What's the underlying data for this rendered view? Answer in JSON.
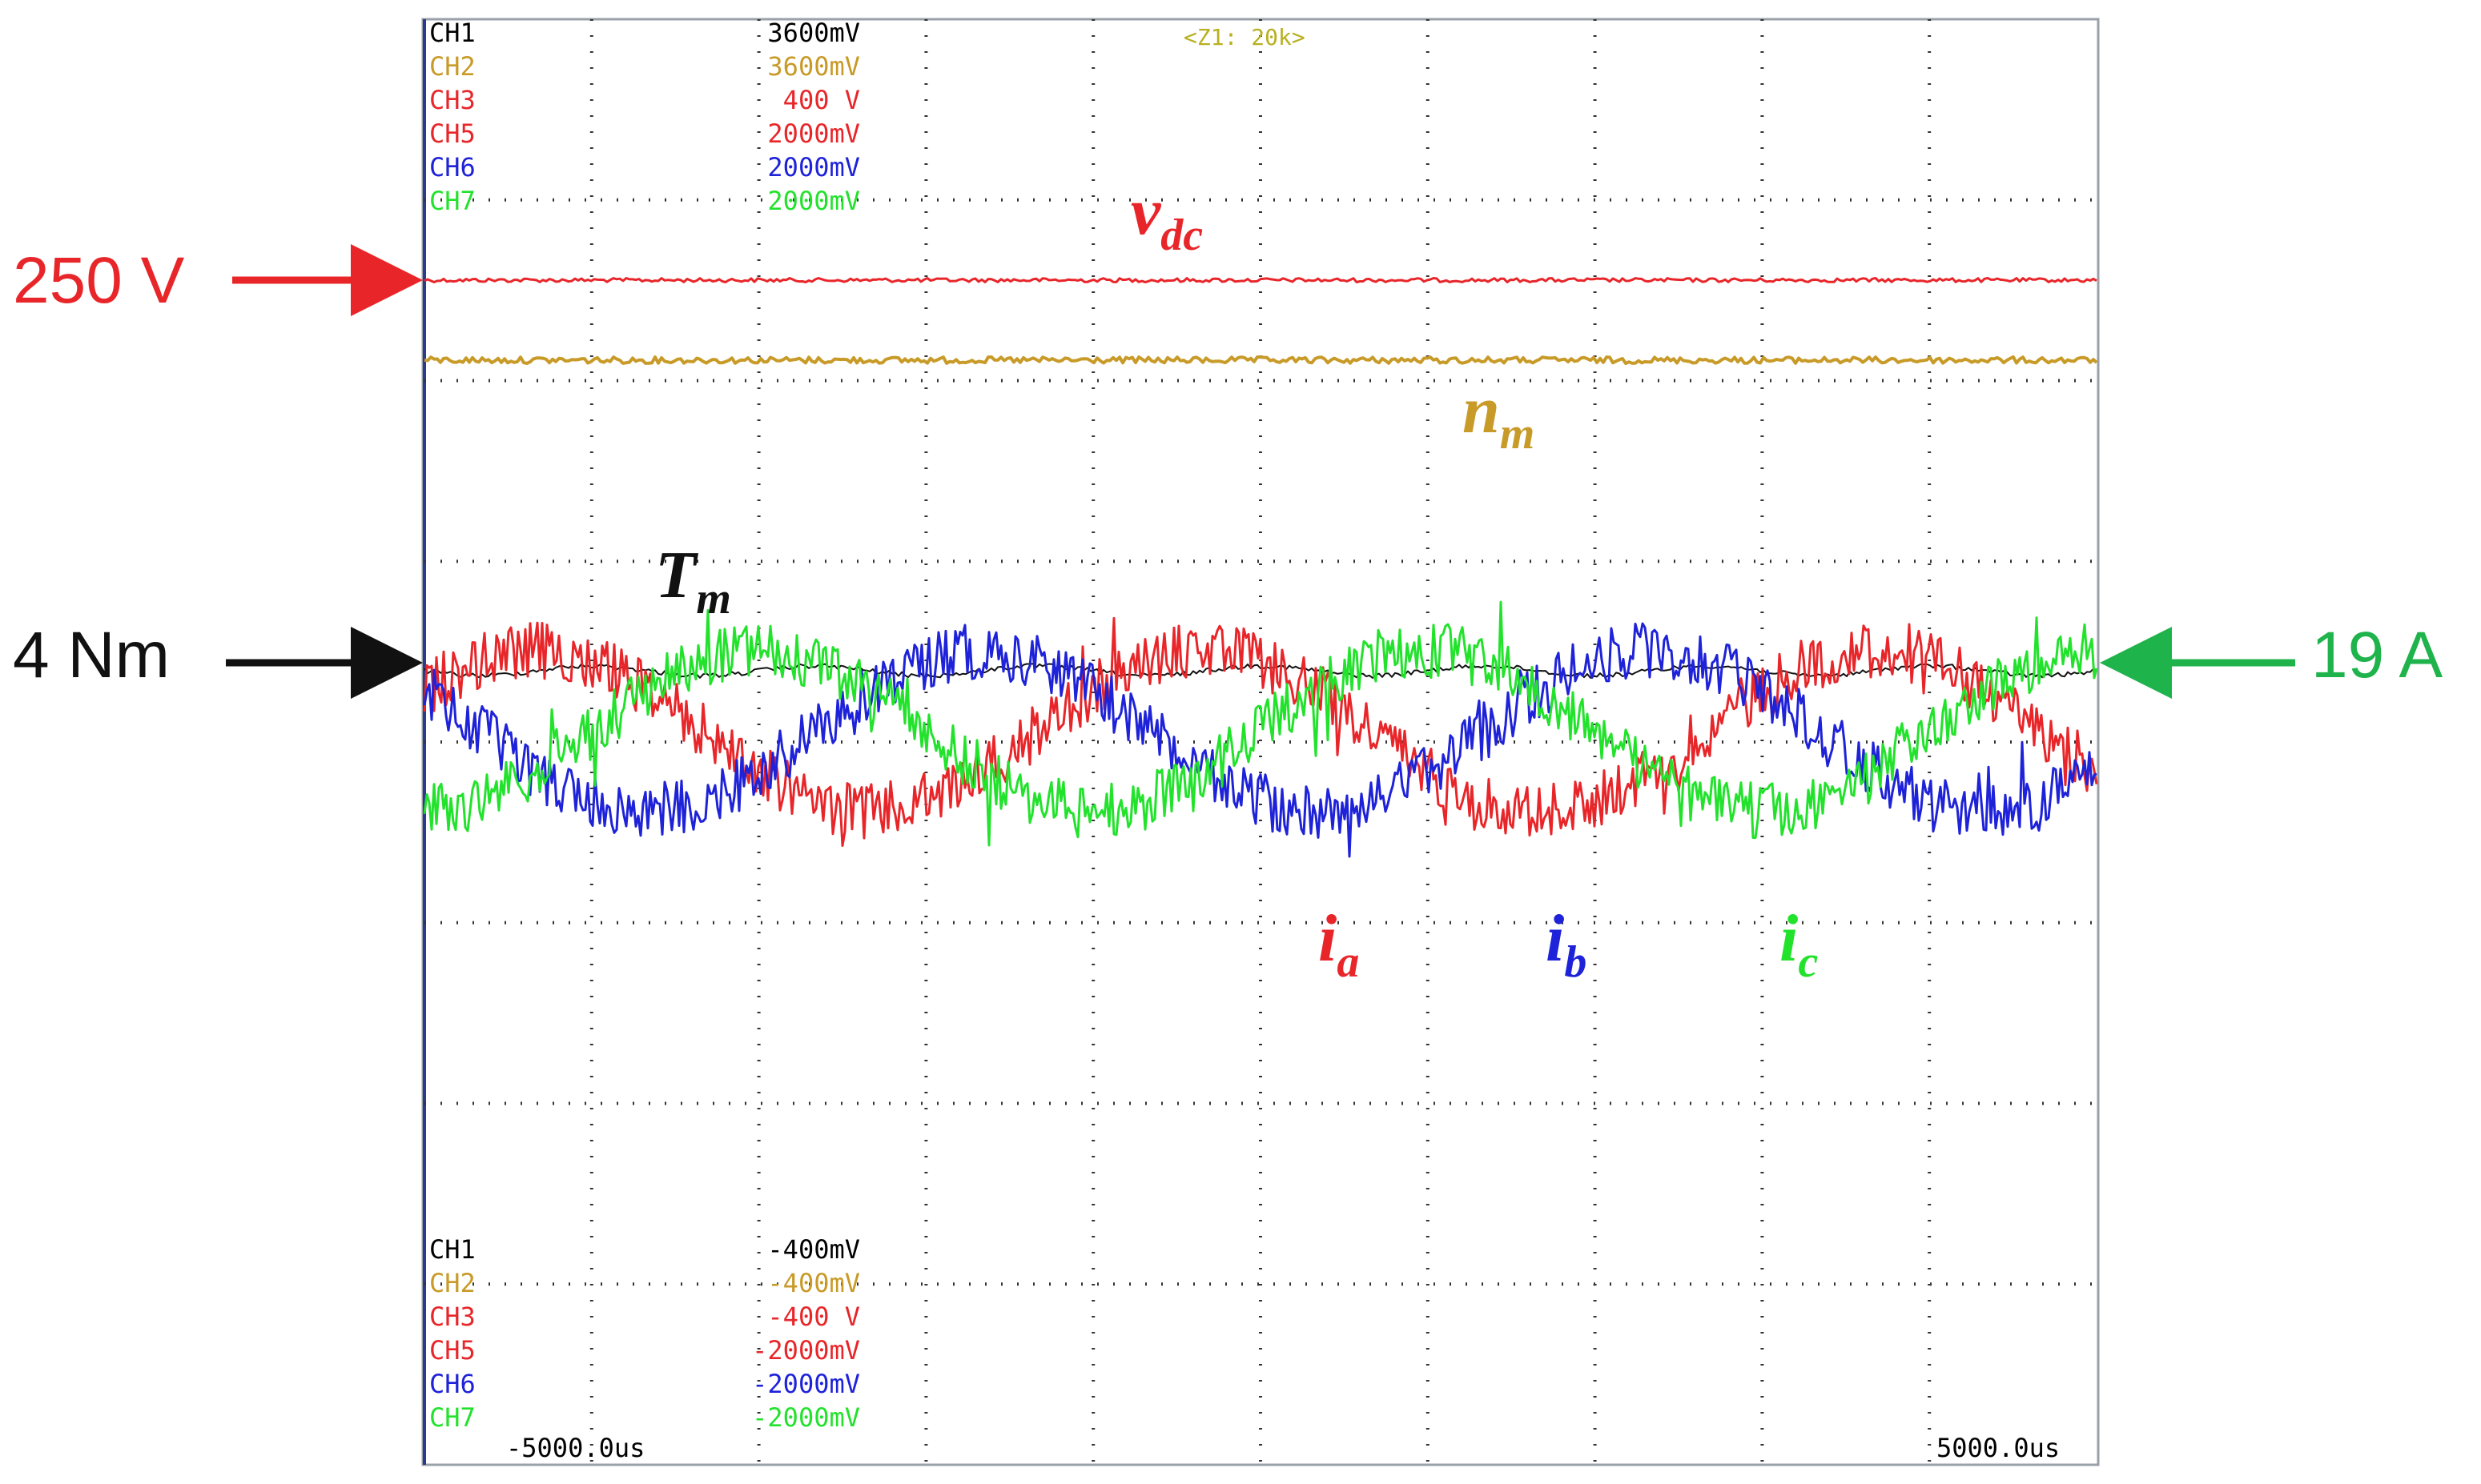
{
  "chart_data": {
    "type": "line",
    "time_axis": {
      "start": "-5000.0us",
      "end": "5000.0us"
    },
    "zoom": "<Z1: 20k>",
    "grid": "dotted",
    "colors": {
      "vdc": "#e8262a",
      "nm": "#c89a28",
      "tm": "#111111",
      "ia": "#e8262a",
      "ib": "#1e22d8",
      "ic": "#22e22c",
      "arrow_250v": "#e8262a",
      "arrow_4nm": "#111111",
      "arrow_19a": "#1fb34c"
    },
    "channel_scales_top": [
      {
        "ch": "CH1",
        "value": "3600mV",
        "color": "#000000"
      },
      {
        "ch": "CH2",
        "value": "3600mV",
        "color": "#c89a28"
      },
      {
        "ch": "CH3",
        "value": "400 V",
        "color": "#e8262a"
      },
      {
        "ch": "CH5",
        "value": "2000mV",
        "color": "#e8262a"
      },
      {
        "ch": "CH6",
        "value": "2000mV",
        "color": "#1e22d8"
      },
      {
        "ch": "CH7",
        "value": "2000mV",
        "color": "#22e22c"
      }
    ],
    "channel_scales_bottom": [
      {
        "ch": "CH1",
        "value": "-400mV",
        "color": "#000000"
      },
      {
        "ch": "CH2",
        "value": "-400mV",
        "color": "#c89a28"
      },
      {
        "ch": "CH3",
        "value": "-400 V",
        "color": "#e8262a"
      },
      {
        "ch": "CH5",
        "value": "-2000mV",
        "color": "#e8262a"
      },
      {
        "ch": "CH6",
        "value": "-2000mV",
        "color": "#1e22d8"
      },
      {
        "ch": "CH7",
        "value": "-2000mV",
        "color": "#22e22c"
      }
    ],
    "series": [
      {
        "name": "v",
        "sub": "dc",
        "kind": "dc"
      },
      {
        "name": "n",
        "sub": "m",
        "kind": "dc"
      },
      {
        "name": "T",
        "sub": "m",
        "kind": "dc"
      },
      {
        "name": "i",
        "sub": "a",
        "kind": "sine",
        "cycles": 2.5,
        "phase_deg": 30
      },
      {
        "name": "i",
        "sub": "b",
        "kind": "sine",
        "cycles": 2.5,
        "phase_deg": 150
      },
      {
        "name": "i",
        "sub": "c",
        "kind": "sine",
        "cycles": 2.5,
        "phase_deg": 270
      }
    ],
    "annotations": {
      "vdc_level": "250 V",
      "tm_level": "4 Nm",
      "ic_peak": "19 A"
    }
  }
}
